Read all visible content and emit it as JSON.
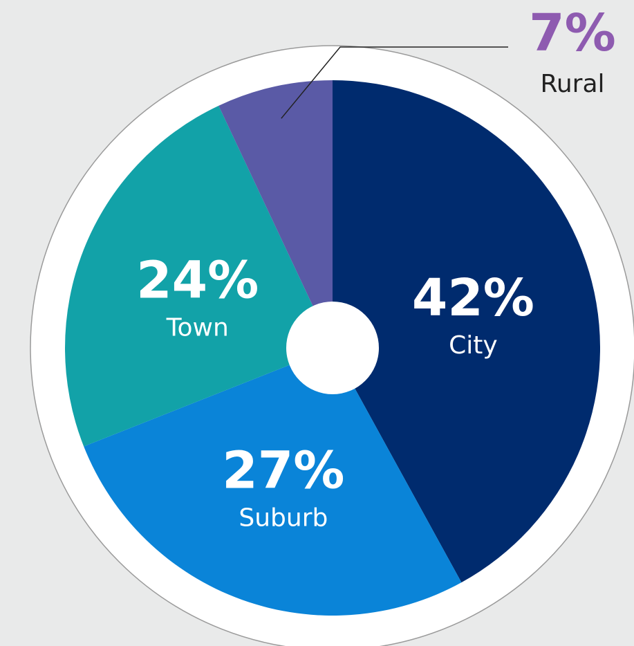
{
  "chart_data": {
    "type": "pie",
    "categories": [
      "City",
      "Suburb",
      "Town",
      "Rural"
    ],
    "values": [
      42,
      27,
      24,
      7
    ],
    "value_labels": [
      "42%",
      "27%",
      "24%",
      "7%"
    ],
    "colors": [
      "#002b6e",
      "#0a84d8",
      "#12a2a8",
      "#5a5aa6"
    ]
  }
}
